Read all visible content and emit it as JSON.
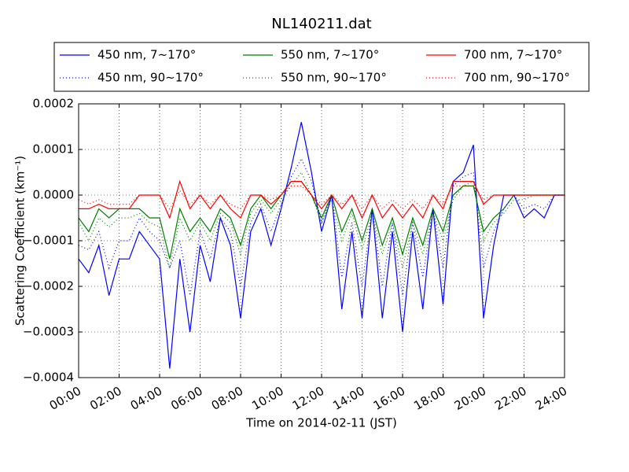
{
  "chart_data": {
    "type": "line",
    "title": "NL140211.dat",
    "xlabel": "Time on 2014-02-11 (JST)",
    "ylabel": "Scattering Coefficient (km⁻¹)",
    "x": [
      0,
      0.5,
      1,
      1.5,
      2,
      2.5,
      3,
      3.5,
      4,
      4.5,
      5,
      5.5,
      6,
      6.5,
      7,
      7.5,
      8,
      8.5,
      9,
      9.5,
      10,
      10.5,
      11,
      11.5,
      12,
      12.5,
      13,
      13.5,
      14,
      14.5,
      15,
      15.5,
      16,
      16.5,
      17,
      17.5,
      18,
      18.5,
      19,
      19.5,
      20,
      20.5,
      21,
      21.5,
      22,
      22.5,
      23,
      23.5,
      24
    ],
    "xlim": [
      0,
      24
    ],
    "xticks": [
      {
        "value": 0,
        "label": "00:00"
      },
      {
        "value": 2,
        "label": "02:00"
      },
      {
        "value": 4,
        "label": "04:00"
      },
      {
        "value": 6,
        "label": "06:00"
      },
      {
        "value": 8,
        "label": "08:00"
      },
      {
        "value": 10,
        "label": "10:00"
      },
      {
        "value": 12,
        "label": "12:00"
      },
      {
        "value": 14,
        "label": "14:00"
      },
      {
        "value": 16,
        "label": "16:00"
      },
      {
        "value": 18,
        "label": "18:00"
      },
      {
        "value": 20,
        "label": "20:00"
      },
      {
        "value": 22,
        "label": "22:00"
      },
      {
        "value": 24,
        "label": "24:00"
      }
    ],
    "ylim": [
      -0.0004,
      0.0002
    ],
    "yticks": [
      {
        "value": -0.0004,
        "label": "−0.0004"
      },
      {
        "value": -0.0003,
        "label": "−0.0003"
      },
      {
        "value": -0.0002,
        "label": "−0.0002"
      },
      {
        "value": -0.0001,
        "label": "−0.0001"
      },
      {
        "value": 0,
        "label": "0.0000"
      },
      0.0001,
      0.0002
    ],
    "grid": true,
    "legend": "top",
    "series": [
      {
        "name": "450 nm, 7∼170°",
        "color": "#0000ff",
        "linestyle": "solid",
        "values": [
          -0.00014,
          -0.00017,
          -0.00011,
          -0.00022,
          -0.00014,
          -0.00014,
          -8e-05,
          -0.00011,
          -0.00014,
          -0.00038,
          -0.00014,
          -0.0003,
          -0.00011,
          -0.00019,
          -5e-05,
          -0.00011,
          -0.00027,
          -8e-05,
          -3e-05,
          -0.00011,
          -3e-05,
          6e-05,
          0.00016,
          5e-05,
          -8e-05,
          0,
          -0.00025,
          -8e-05,
          -0.00027,
          -3e-05,
          -0.00027,
          -8e-05,
          -0.0003,
          -8e-05,
          -0.00025,
          -3e-05,
          -0.00024,
          3e-05,
          5e-05,
          0.00011,
          -0.00027,
          -0.00011,
          0,
          0,
          -5e-05,
          -3e-05,
          -5e-05,
          0,
          0
        ]
      },
      {
        "name": "550 nm, 7∼170°",
        "color": "#007f00",
        "linestyle": "solid",
        "values": [
          -5e-05,
          -8e-05,
          -3e-05,
          -5e-05,
          -3e-05,
          -3e-05,
          -3e-05,
          -5e-05,
          -5e-05,
          -0.00014,
          -3e-05,
          -8e-05,
          -5e-05,
          -8e-05,
          -3e-05,
          -5e-05,
          -0.00011,
          -3e-05,
          0,
          -3e-05,
          0,
          3e-05,
          3e-05,
          0,
          -5e-05,
          0,
          -8e-05,
          -3e-05,
          -0.0001,
          -3e-05,
          -0.00011,
          -5e-05,
          -0.00013,
          -5e-05,
          -0.00011,
          -3e-05,
          -8e-05,
          0,
          2e-05,
          2e-05,
          -8e-05,
          -5e-05,
          -3e-05,
          0,
          0,
          0,
          0,
          0,
          0
        ]
      },
      {
        "name": "700 nm, 7∼170°",
        "color": "#ff0000",
        "linestyle": "solid",
        "values": [
          -3e-05,
          -3e-05,
          -2e-05,
          -3e-05,
          -3e-05,
          -3e-05,
          0,
          0,
          0,
          -5e-05,
          3e-05,
          -3e-05,
          0,
          -3e-05,
          0,
          -3e-05,
          -5e-05,
          0,
          0,
          -2e-05,
          0,
          3e-05,
          3e-05,
          0,
          -3e-05,
          0,
          -3e-05,
          0,
          -5e-05,
          0,
          -5e-05,
          -2e-05,
          -5e-05,
          -2e-05,
          -5e-05,
          0,
          -3e-05,
          3e-05,
          3e-05,
          3e-05,
          -2e-05,
          0,
          0,
          0,
          0,
          0,
          0,
          0,
          0
        ]
      },
      {
        "name": "450 nm, 90∼170°",
        "color": "#0000ff",
        "linestyle": "dotted",
        "values": [
          -0.00011,
          -0.00012,
          -8e-05,
          -0.00016,
          -0.0001,
          -0.0001,
          -5e-05,
          -8e-05,
          -0.0001,
          -0.00016,
          -0.0001,
          -0.00022,
          -8e-05,
          -0.00014,
          -5e-05,
          -8e-05,
          -0.0002,
          -6e-05,
          -2e-05,
          -8e-05,
          -2e-05,
          4e-05,
          8e-05,
          3e-05,
          -6e-05,
          0,
          -0.00018,
          -6e-05,
          -0.0002,
          -3e-05,
          -0.0002,
          -6e-05,
          -0.00022,
          -6e-05,
          -0.00018,
          -3e-05,
          -0.00016,
          2e-05,
          4e-05,
          5e-05,
          -0.00016,
          -8e-05,
          -3e-05,
          0,
          -3e-05,
          -2e-05,
          -3e-05,
          0,
          0
        ]
      },
      {
        "name": "550 nm, 90∼170°",
        "color": "#007f00",
        "linestyle": "dotted",
        "values": [
          -6e-05,
          -0.0001,
          -5e-05,
          -7e-05,
          -5e-05,
          -5e-05,
          -4e-05,
          -6e-05,
          -7e-05,
          -0.00016,
          -5e-05,
          -0.0001,
          -6e-05,
          -0.0001,
          -4e-05,
          -6e-05,
          -0.00013,
          -4e-05,
          -1e-05,
          -4e-05,
          -1e-05,
          2e-05,
          5e-05,
          0,
          -6e-05,
          -1e-05,
          -0.0001,
          -4e-05,
          -0.00012,
          -4e-05,
          -0.00013,
          -6e-05,
          -0.00016,
          -6e-05,
          -0.00013,
          -4e-05,
          -0.0001,
          -1e-05,
          2e-05,
          3e-05,
          -0.0001,
          -6e-05,
          -4e-05,
          -1e-05,
          -1e-05,
          0,
          0,
          0,
          0
        ]
      },
      {
        "name": "700 nm, 90∼170°",
        "color": "#ff0000",
        "linestyle": "dotted",
        "values": [
          -1e-05,
          -2e-05,
          -1e-05,
          -2e-05,
          -2e-05,
          -2e-05,
          0,
          0,
          0,
          -3e-05,
          1e-05,
          -2e-05,
          0,
          -2e-05,
          0,
          -2e-05,
          -3e-05,
          0,
          0,
          -1e-05,
          0,
          2e-05,
          2e-05,
          0,
          -2e-05,
          0,
          -2e-05,
          0,
          -3e-05,
          0,
          -3e-05,
          -1e-05,
          -3e-05,
          -1e-05,
          -3e-05,
          0,
          -2e-05,
          2e-05,
          2e-05,
          2e-05,
          -1e-05,
          0,
          0,
          0,
          0,
          0,
          0,
          0,
          0
        ]
      }
    ]
  }
}
